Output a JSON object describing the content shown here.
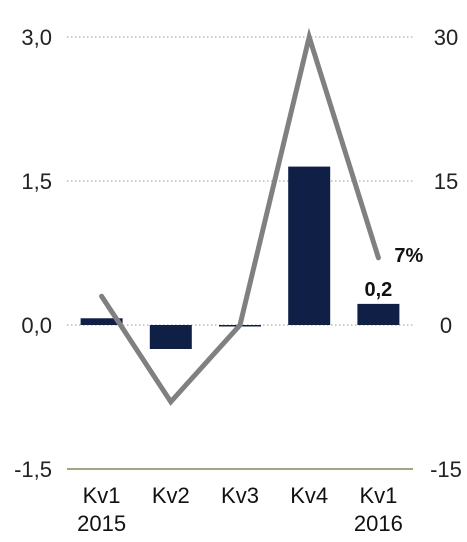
{
  "chart_data": {
    "type": "bar",
    "categories": [
      [
        "Kv1",
        "2015"
      ],
      [
        "Kv2",
        ""
      ],
      [
        "Kv3",
        ""
      ],
      [
        "Kv4",
        ""
      ],
      [
        "Kv1",
        "2016"
      ]
    ],
    "series": [
      {
        "kind": "bar",
        "axis": "left",
        "color": "#0f1f45",
        "values": [
          0.07,
          -0.25,
          0.0,
          1.65,
          0.22
        ]
      },
      {
        "kind": "line",
        "axis": "right",
        "color": "#808080",
        "values": [
          3,
          -8,
          0,
          30,
          7
        ]
      }
    ],
    "left_axis": {
      "ylim": [
        -1.5,
        3.0
      ],
      "ticks": [
        "3,0",
        "1,5",
        "0,0",
        "-1,5"
      ],
      "tick_values": [
        3.0,
        1.5,
        0.0,
        -1.5
      ]
    },
    "right_axis": {
      "ylim": [
        -15,
        30
      ],
      "ticks": [
        "30",
        "15",
        "0",
        "-15"
      ],
      "tick_values": [
        30,
        15,
        0,
        -15
      ]
    },
    "data_labels": [
      {
        "text": "0,2",
        "series": 0,
        "index": 4
      },
      {
        "text": "7%",
        "series": 1,
        "index": 4
      }
    ],
    "grid": "dotted horizontal at major ticks",
    "legend": "none"
  }
}
